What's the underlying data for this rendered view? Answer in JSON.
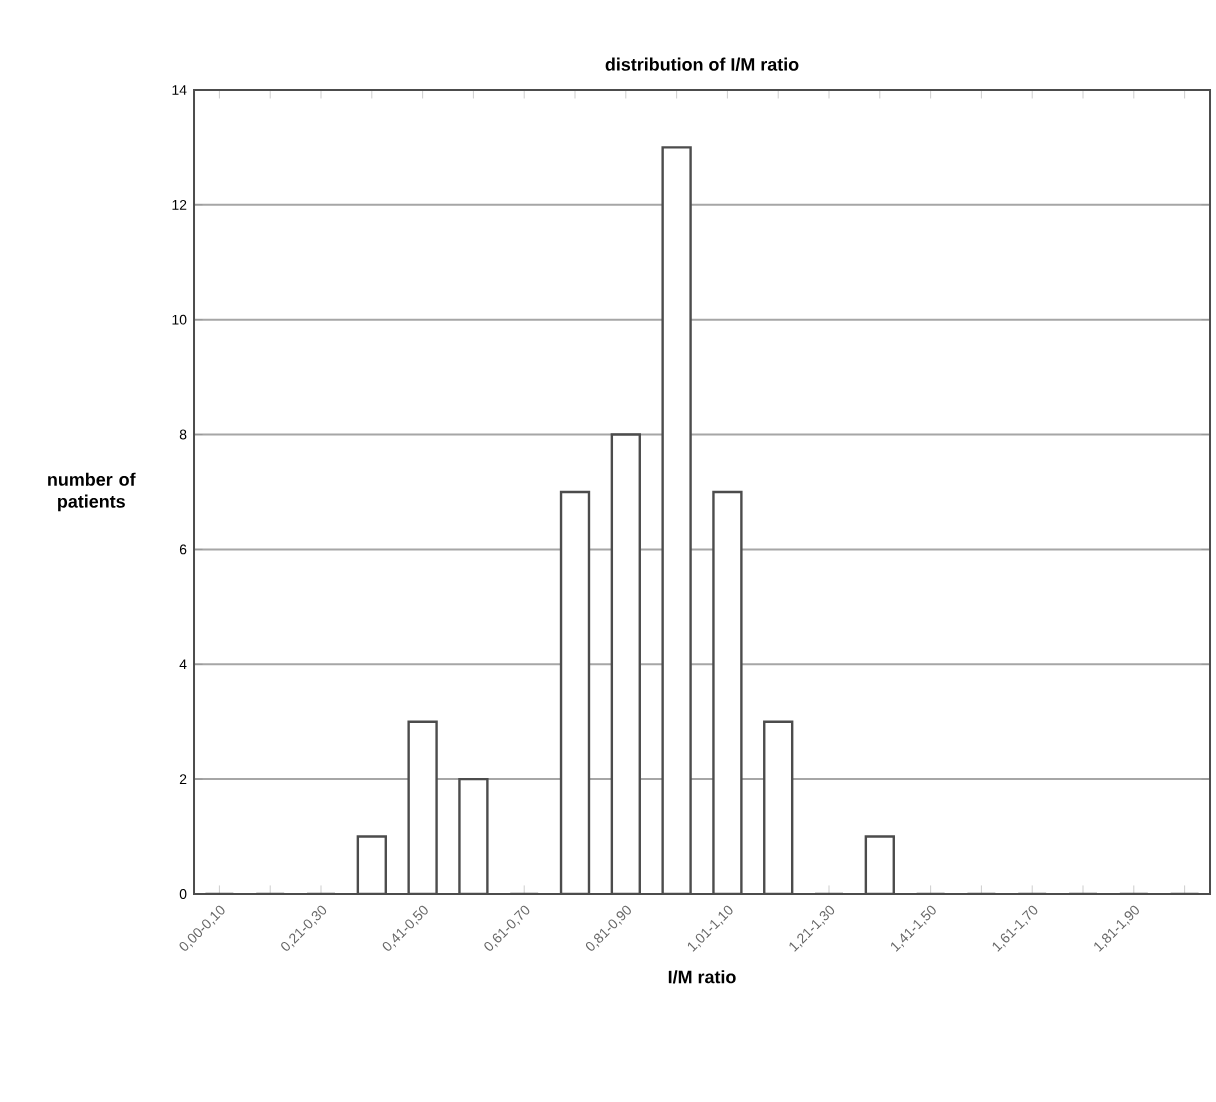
{
  "chart_data": {
    "type": "bar",
    "title": "distribution of I/M ratio",
    "xlabel": "I/M ratio",
    "ylabel": "number of patients",
    "categories": [
      "0,00-0,10",
      null,
      "0,21-0,30",
      null,
      "0,41-0,50",
      null,
      "0,61-0,70",
      null,
      "0,81-0,90",
      null,
      "1,01-1,10",
      null,
      "1,21-1,30",
      null,
      "1,41-1,50",
      null,
      "1,61-1,70",
      null,
      "1,81-1,90",
      null
    ],
    "values": [
      0,
      0,
      0,
      1,
      3,
      2,
      0,
      7,
      8,
      13,
      7,
      3,
      0,
      1,
      0,
      0,
      0,
      0,
      0,
      0
    ],
    "color": "#4c4c4c",
    "ylim": [
      0,
      14
    ],
    "yticks": [
      0,
      2,
      4,
      6,
      8,
      10,
      12,
      14
    ],
    "grid": "y"
  }
}
